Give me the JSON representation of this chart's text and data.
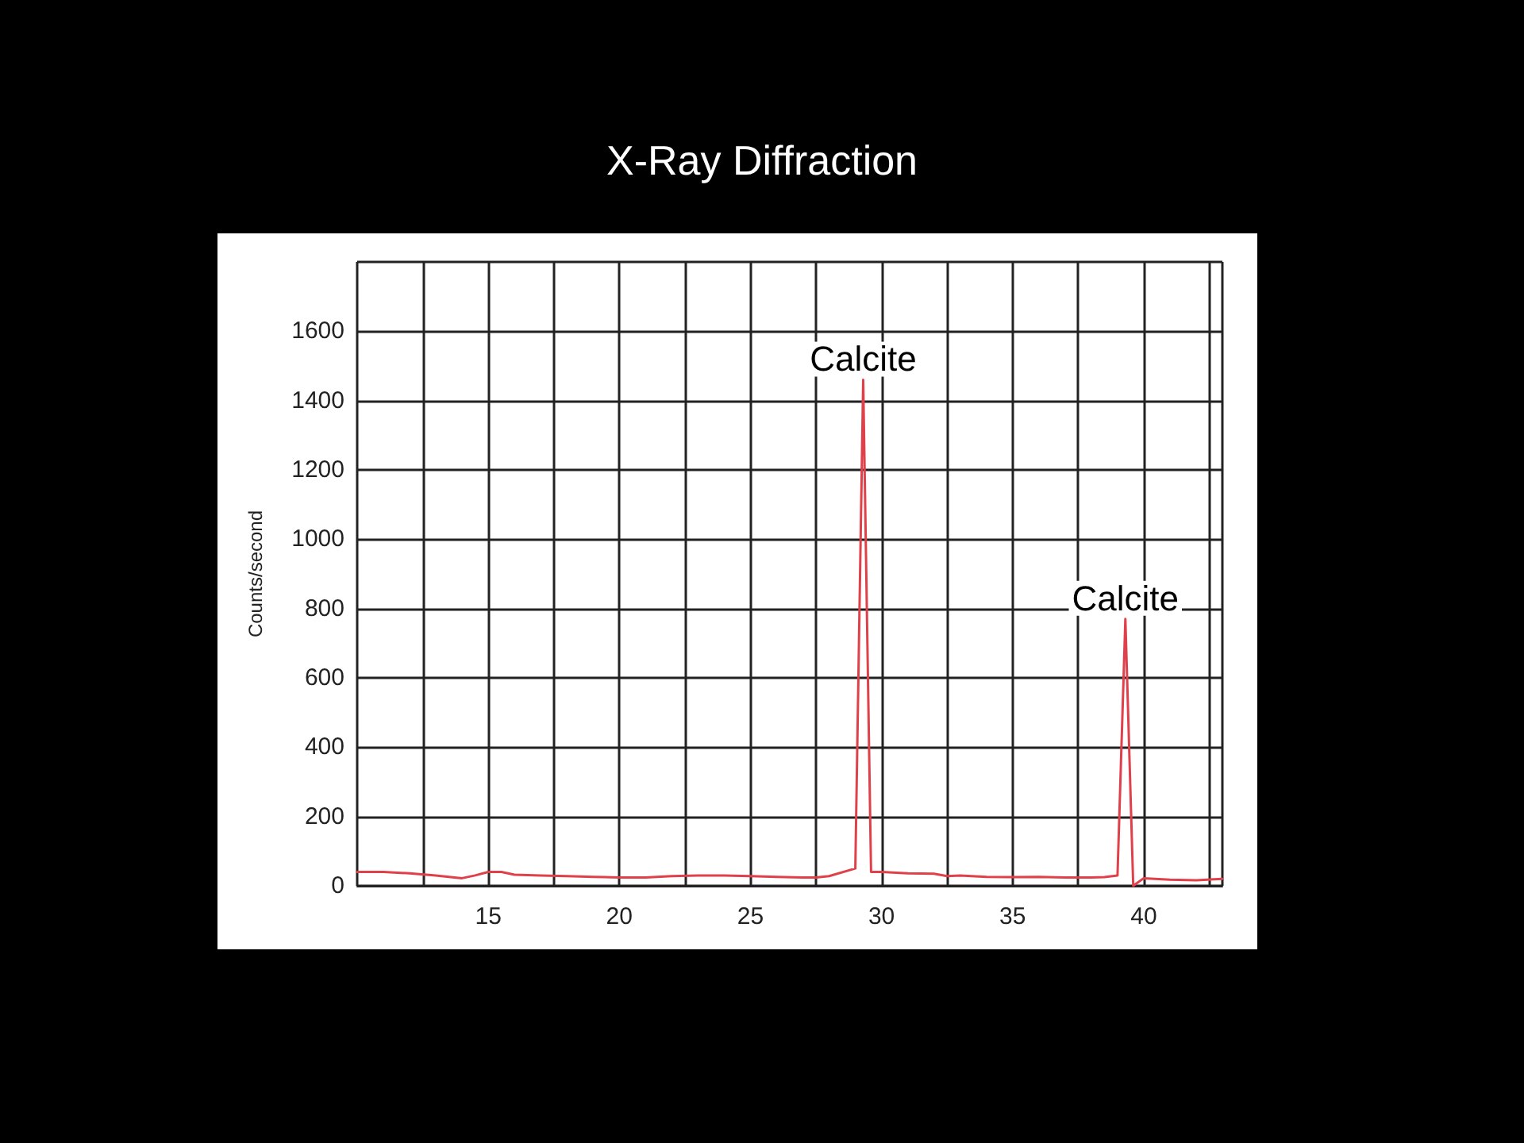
{
  "chart_data": {
    "type": "line",
    "title": "X-Ray Diffraction",
    "ylabel": "Counts/second",
    "x": [
      10,
      11,
      12,
      13,
      14,
      14.5,
      15,
      15.5,
      16,
      17,
      18,
      19,
      20,
      21,
      22,
      23,
      24,
      25,
      26,
      27,
      27.5,
      28,
      29.0,
      29.3,
      29.6,
      30,
      31,
      32,
      32.5,
      33,
      34,
      35,
      36,
      37,
      38,
      38.5,
      39.0,
      39.3,
      39.6,
      40,
      41,
      42,
      43
    ],
    "series": [
      {
        "color": "#e0404a",
        "values": [
          40,
          40,
          36,
          30,
          22,
          30,
          40,
          40,
          32,
          30,
          28,
          26,
          24,
          24,
          28,
          30,
          30,
          28,
          26,
          24,
          24,
          28,
          50,
          1460,
          40,
          40,
          36,
          35,
          28,
          30,
          26,
          25,
          26,
          24,
          24,
          25,
          30,
          770,
          0,
          22,
          18,
          16,
          20
        ]
      }
    ],
    "xlim": [
      10,
      43
    ],
    "xticks": [
      {
        "value": 10,
        "label": null
      },
      {
        "value": 12.5,
        "label": null
      },
      15,
      {
        "value": 17.5,
        "label": null
      },
      20,
      {
        "value": 22.5,
        "label": null
      },
      25,
      {
        "value": 27.5,
        "label": null
      },
      30,
      {
        "value": 32.5,
        "label": null
      },
      35,
      {
        "value": 37.5,
        "label": null
      },
      40,
      {
        "value": 42.5,
        "label": null
      }
    ],
    "ylim": [
      0,
      1800
    ],
    "yticks": [
      0,
      200,
      400,
      600,
      800,
      1000,
      1200,
      1400,
      1600
    ],
    "grid": true,
    "marker": "none",
    "line_style": "solid",
    "annotations": [
      {
        "text": "Calcite",
        "x": 29.3,
        "y": 1460
      },
      {
        "text": "Calcite",
        "x": 39.3,
        "y": 770
      }
    ]
  }
}
